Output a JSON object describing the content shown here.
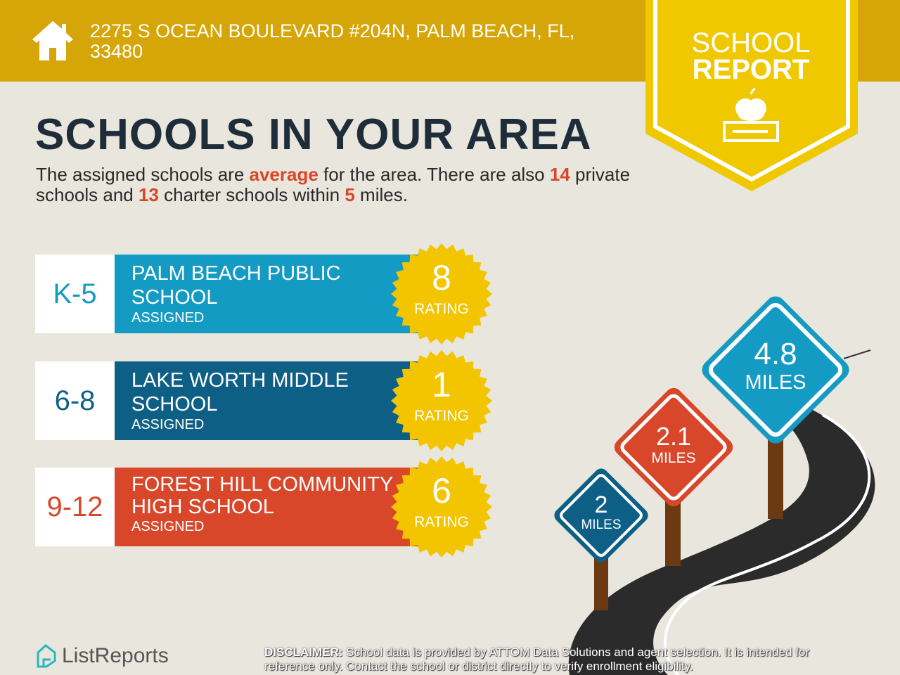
{
  "header": {
    "address": "2275 S OCEAN BOULEVARD #204N, PALM BEACH, FL, 33480",
    "icon": "house-icon"
  },
  "banner": {
    "line1": "SCHOOL",
    "line2": "REPORT",
    "icon": "apple-on-book-icon"
  },
  "title": "SCHOOLS IN YOUR AREA",
  "intro": {
    "p1": "The assigned schools are ",
    "quality": "average",
    "p2": " for the area. There are also ",
    "private_count": "14",
    "p3": " private schools and ",
    "charter_count": "13",
    "p4": " charter schools within ",
    "miles": "5",
    "p5": " miles."
  },
  "schools": [
    {
      "grades": "K-5",
      "name": "PALM BEACH PUBLIC SCHOOL",
      "status": "ASSIGNED",
      "rating": "8",
      "rating_label": "RATING",
      "color": "#149bc4"
    },
    {
      "grades": "6-8",
      "name": "LAKE WORTH MIDDLE SCHOOL",
      "status": "ASSIGNED",
      "rating": "1",
      "rating_label": "RATING",
      "color": "#0e5f86"
    },
    {
      "grades": "9-12",
      "name": "FOREST HILL COMMUNITY HIGH SCHOOL",
      "status": "ASSIGNED",
      "rating": "6",
      "rating_label": "RATING",
      "color": "#d9472a"
    }
  ],
  "signs": [
    {
      "value": "2",
      "unit": "MILES",
      "color": "#0e5f86"
    },
    {
      "value": "2.1",
      "unit": "MILES",
      "color": "#d9472a"
    },
    {
      "value": "4.8",
      "unit": "MILES",
      "color": "#149bc4"
    }
  ],
  "footer": {
    "brand": "ListReports",
    "disclaimer_label": "DISCLAIMER:",
    "disclaimer": " School data is provided by ATTOM Data Solutions and agent selection. It is intended for reference only. Contact the school or district directly to verify enrollment eligibility."
  },
  "colors": {
    "header": "#d6a507",
    "banner": "#f0c800",
    "accent": "#d9472a",
    "seal": "#f2c500"
  }
}
